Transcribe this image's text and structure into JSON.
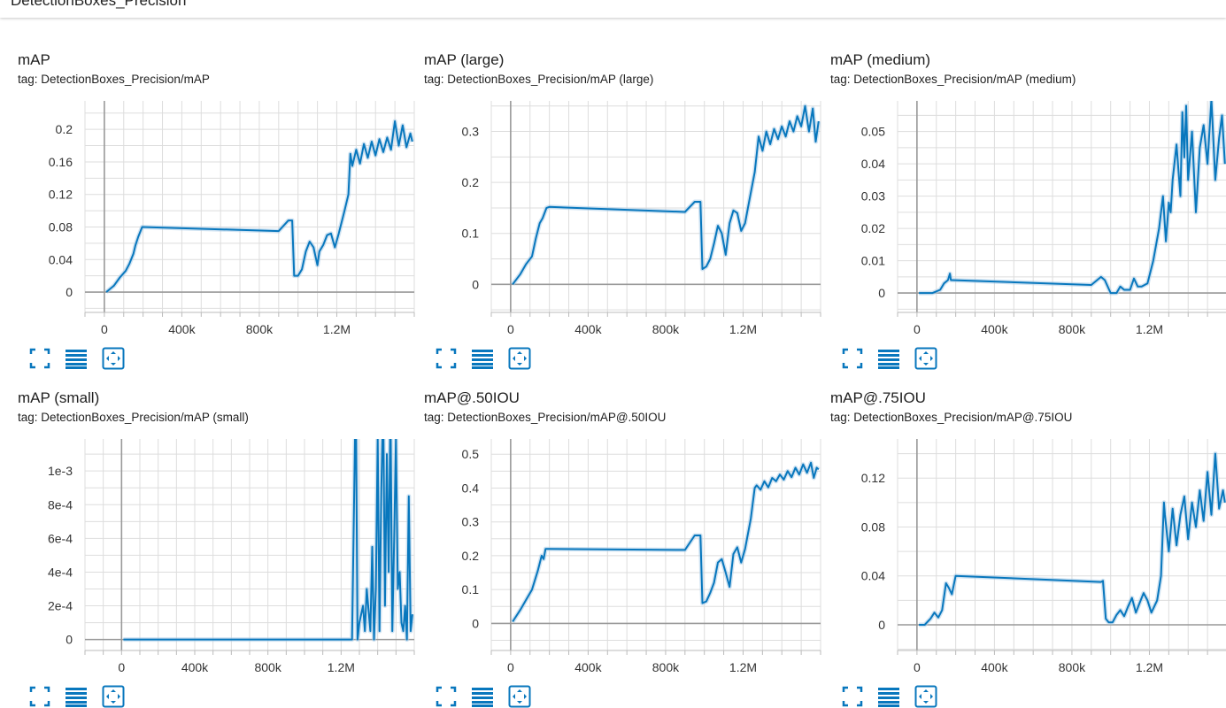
{
  "header": {
    "section_title": "DetectionBoxes_Precision"
  },
  "accent_color": "#0877bd",
  "band_color": "#a9cce8",
  "icons": [
    "fullscreen-icon",
    "toggle-log-scale-icon",
    "fit-domain-icon"
  ],
  "chart_data": [
    {
      "type": "line",
      "title": "mAP",
      "tag": "tag: DetectionBoxes_Precision/mAP",
      "xlim": [
        -100000,
        1600000
      ],
      "ylim": [
        -0.025,
        0.235
      ],
      "xticks": [
        0,
        400000,
        800000,
        1200000
      ],
      "xtick_labels": [
        "0",
        "400k",
        "800k",
        "1.2M"
      ],
      "yticks": [
        0,
        0.04,
        0.08,
        0.12,
        0.16,
        0.2
      ],
      "ytick_labels": [
        "0",
        "0.04",
        "0.08",
        "0.12",
        "0.16",
        "0.2"
      ],
      "series": [
        {
          "x": [
            10000,
            50000,
            80000,
            110000,
            130000,
            150000,
            160000,
            175000,
            195000,
            900000,
            950000,
            970000,
            980000,
            1000000,
            1020000,
            1040000,
            1060000,
            1080000,
            1100000,
            1110000,
            1130000,
            1150000,
            1170000,
            1190000,
            1210000,
            1240000,
            1260000,
            1270000,
            1280000,
            1300000,
            1320000,
            1340000,
            1360000,
            1380000,
            1400000,
            1420000,
            1440000,
            1460000,
            1480000,
            1500000,
            1520000,
            1540000,
            1560000,
            1580000,
            1590000
          ],
          "y": [
            0,
            0.008,
            0.018,
            0.026,
            0.035,
            0.047,
            0.057,
            0.068,
            0.08,
            0.075,
            0.088,
            0.088,
            0.02,
            0.02,
            0.028,
            0.05,
            0.062,
            0.055,
            0.033,
            0.05,
            0.058,
            0.07,
            0.072,
            0.055,
            0.072,
            0.1,
            0.12,
            0.17,
            0.155,
            0.175,
            0.158,
            0.182,
            0.165,
            0.185,
            0.168,
            0.188,
            0.172,
            0.19,
            0.175,
            0.21,
            0.18,
            0.205,
            0.178,
            0.195,
            0.185
          ]
        }
      ]
    },
    {
      "type": "line",
      "title": "mAP (large)",
      "tag": "tag: DetectionBoxes_Precision/mAP (large)",
      "xlim": [
        -100000,
        1600000
      ],
      "ylim": [
        -0.055,
        0.36
      ],
      "xticks": [
        0,
        400000,
        800000,
        1200000
      ],
      "xtick_labels": [
        "0",
        "400k",
        "800k",
        "1.2M"
      ],
      "yticks": [
        0,
        0.1,
        0.2,
        0.3
      ],
      "ytick_labels": [
        "0",
        "0.1",
        "0.2",
        "0.3"
      ],
      "series": [
        {
          "x": [
            10000,
            50000,
            80000,
            110000,
            130000,
            150000,
            165000,
            185000,
            200000,
            900000,
            950000,
            980000,
            990000,
            1010000,
            1030000,
            1050000,
            1070000,
            1090000,
            1110000,
            1130000,
            1150000,
            1170000,
            1190000,
            1210000,
            1230000,
            1260000,
            1280000,
            1300000,
            1320000,
            1340000,
            1360000,
            1380000,
            1400000,
            1420000,
            1440000,
            1460000,
            1480000,
            1500000,
            1520000,
            1540000,
            1560000,
            1575000,
            1590000
          ],
          "y": [
            0,
            0.02,
            0.04,
            0.055,
            0.09,
            0.12,
            0.13,
            0.15,
            0.152,
            0.142,
            0.162,
            0.162,
            0.03,
            0.035,
            0.05,
            0.08,
            0.115,
            0.1,
            0.058,
            0.12,
            0.145,
            0.14,
            0.105,
            0.12,
            0.16,
            0.22,
            0.29,
            0.262,
            0.3,
            0.275,
            0.305,
            0.285,
            0.31,
            0.29,
            0.32,
            0.3,
            0.33,
            0.31,
            0.35,
            0.3,
            0.345,
            0.28,
            0.32
          ]
        }
      ]
    },
    {
      "type": "line",
      "title": "mAP (medium)",
      "tag": "tag: DetectionBoxes_Precision/mAP (medium)",
      "xlim": [
        -100000,
        1600000
      ],
      "ylim": [
        -0.006,
        0.0595
      ],
      "xticks": [
        0,
        400000,
        800000,
        1200000
      ],
      "xtick_labels": [
        "0",
        "400k",
        "800k",
        "1.2M"
      ],
      "yticks": [
        0,
        0.01,
        0.02,
        0.03,
        0.04,
        0.05
      ],
      "ytick_labels": [
        "0",
        "0.01",
        "0.02",
        "0.03",
        "0.04",
        "0.05"
      ],
      "series": [
        {
          "x": [
            10000,
            80000,
            120000,
            140000,
            160000,
            170000,
            175000,
            180000,
            900000,
            930000,
            950000,
            970000,
            1000000,
            1030000,
            1050000,
            1070000,
            1100000,
            1120000,
            1140000,
            1160000,
            1190000,
            1220000,
            1250000,
            1270000,
            1285000,
            1300000,
            1310000,
            1320000,
            1340000,
            1360000,
            1370000,
            1380000,
            1390000,
            1400000,
            1420000,
            1440000,
            1460000,
            1480000,
            1500000,
            1520000,
            1540000,
            1560000,
            1575000,
            1590000
          ],
          "y": [
            0,
            0,
            0.001,
            0.003,
            0.004,
            0.006,
            0.004,
            0.004,
            0.0025,
            0.004,
            0.005,
            0.004,
            0,
            0,
            0.002,
            0.001,
            0.001,
            0.0045,
            0.002,
            0.002,
            0.003,
            0.01,
            0.02,
            0.03,
            0.016,
            0.028,
            0.025,
            0.035,
            0.046,
            0.03,
            0.056,
            0.042,
            0.058,
            0.035,
            0.05,
            0.025,
            0.045,
            0.052,
            0.04,
            0.06,
            0.035,
            0.048,
            0.055,
            0.04
          ]
        }
      ]
    },
    {
      "type": "line",
      "title": "mAP (small)",
      "tag": "tag: DetectionBoxes_Precision/mAP (small)",
      "xlim": [
        -200000,
        1600000
      ],
      "ylim": [
        -6.5e-05,
        0.00119
      ],
      "xticks": [
        0,
        400000,
        800000,
        1200000
      ],
      "xtick_labels": [
        "0",
        "400k",
        "800k",
        "1.2M"
      ],
      "yticks": [
        0,
        0.0002,
        0.0004,
        0.0006,
        0.0008,
        0.001
      ],
      "ytick_labels": [
        "0",
        "2e-4",
        "4e-4",
        "6e-4",
        "8e-4",
        "1e-3"
      ],
      "series": [
        {
          "x": [
            10000,
            1260000,
            1280000,
            1290000,
            1300000,
            1320000,
            1330000,
            1340000,
            1360000,
            1370000,
            1380000,
            1390000,
            1400000,
            1410000,
            1420000,
            1430000,
            1440000,
            1450000,
            1460000,
            1470000,
            1480000,
            1490000,
            1500000,
            1510000,
            1520000,
            1530000,
            1540000,
            1550000,
            1560000,
            1570000,
            1580000,
            1590000
          ],
          "y": [
            0,
            0,
            0.0015,
            0,
            0.0001,
            0.0002,
            5e-05,
            0.0003,
            5e-05,
            0.00055,
            0,
            0.0003,
            0.0012,
            5e-05,
            0.0009,
            0.0014,
            0.0002,
            0.0011,
            0.0004,
            0.0014,
            5e-05,
            0.0006,
            0.0012,
            0.0003,
            0.0004,
            0.0001,
            5e-05,
            0.0002,
            0,
            0.00085,
            5e-05,
            0.00015
          ]
        }
      ]
    },
    {
      "type": "line",
      "title": "mAP@.50IOU",
      "tag": "tag: DetectionBoxes_Precision/mAP@.50IOU",
      "xlim": [
        -100000,
        1600000
      ],
      "ylim": [
        -0.08,
        0.545
      ],
      "xticks": [
        0,
        400000,
        800000,
        1200000
      ],
      "xtick_labels": [
        "0",
        "400k",
        "800k",
        "1.2M"
      ],
      "yticks": [
        0,
        0.1,
        0.2,
        0.3,
        0.4,
        0.5
      ],
      "ytick_labels": [
        "0",
        "0.1",
        "0.2",
        "0.3",
        "0.4",
        "0.5"
      ],
      "series": [
        {
          "x": [
            10000,
            50000,
            80000,
            110000,
            140000,
            160000,
            170000,
            180000,
            200000,
            900000,
            950000,
            980000,
            990000,
            1010000,
            1030000,
            1050000,
            1070000,
            1090000,
            1110000,
            1130000,
            1150000,
            1170000,
            1190000,
            1210000,
            1240000,
            1260000,
            1270000,
            1290000,
            1310000,
            1330000,
            1350000,
            1370000,
            1390000,
            1410000,
            1430000,
            1450000,
            1470000,
            1490000,
            1510000,
            1530000,
            1550000,
            1565000,
            1580000,
            1590000
          ],
          "y": [
            0.005,
            0.04,
            0.07,
            0.1,
            0.155,
            0.2,
            0.19,
            0.22,
            0.22,
            0.217,
            0.26,
            0.26,
            0.06,
            0.065,
            0.09,
            0.12,
            0.18,
            0.19,
            0.15,
            0.108,
            0.205,
            0.225,
            0.18,
            0.22,
            0.31,
            0.4,
            0.408,
            0.395,
            0.42,
            0.402,
            0.43,
            0.42,
            0.44,
            0.425,
            0.45,
            0.432,
            0.46,
            0.44,
            0.47,
            0.445,
            0.475,
            0.43,
            0.46,
            0.455
          ]
        }
      ]
    },
    {
      "type": "line",
      "title": "mAP@.75IOU",
      "tag": "tag: DetectionBoxes_Precision/mAP@.75IOU",
      "xlim": [
        -100000,
        1600000
      ],
      "ylim": [
        -0.021,
        0.152
      ],
      "xticks": [
        0,
        400000,
        800000,
        1200000
      ],
      "xtick_labels": [
        "0",
        "400k",
        "800k",
        "1.2M"
      ],
      "yticks": [
        0,
        0.04,
        0.08,
        0.12
      ],
      "ytick_labels": [
        "0",
        "0.04",
        "0.08",
        "0.12"
      ],
      "series": [
        {
          "x": [
            10000,
            40000,
            70000,
            90000,
            110000,
            130000,
            150000,
            165000,
            180000,
            200000,
            950000,
            960000,
            975000,
            990000,
            1010000,
            1030000,
            1050000,
            1070000,
            1090000,
            1110000,
            1130000,
            1150000,
            1170000,
            1190000,
            1210000,
            1240000,
            1260000,
            1275000,
            1280000,
            1300000,
            1320000,
            1340000,
            1360000,
            1380000,
            1400000,
            1420000,
            1440000,
            1460000,
            1480000,
            1500000,
            1520000,
            1540000,
            1560000,
            1580000,
            1590000
          ],
          "y": [
            0,
            0,
            0.005,
            0.01,
            0.006,
            0.012,
            0.034,
            0.03,
            0.025,
            0.04,
            0.035,
            0.036,
            0.005,
            0.002,
            0.002,
            0.008,
            0.012,
            0.007,
            0.015,
            0.022,
            0.01,
            0.018,
            0.026,
            0.02,
            0.01,
            0.02,
            0.04,
            0.1,
            0.09,
            0.06,
            0.095,
            0.065,
            0.09,
            0.105,
            0.07,
            0.1,
            0.08,
            0.11,
            0.085,
            0.125,
            0.09,
            0.14,
            0.095,
            0.11,
            0.1
          ]
        }
      ]
    }
  ]
}
